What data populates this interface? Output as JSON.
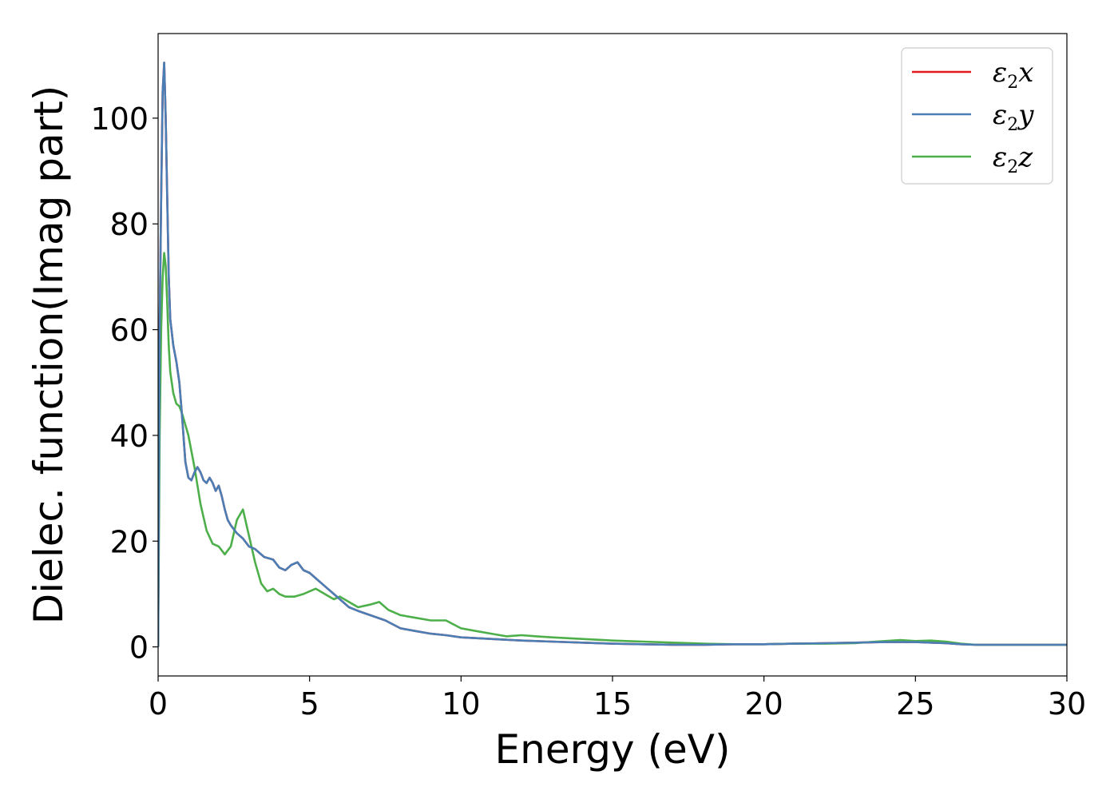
{
  "chart_data": {
    "type": "line",
    "xlabel": "Energy (eV)",
    "ylabel": "Dielec. function(Imag part)",
    "xlim": [
      0,
      30
    ],
    "ylim": [
      -5.5,
      116
    ],
    "xticks": [
      0,
      5,
      10,
      15,
      20,
      25,
      30
    ],
    "yticks": [
      0,
      20,
      40,
      60,
      80,
      100
    ],
    "grid": false,
    "legend_position": "top-right",
    "series": [
      {
        "name": "ε2x",
        "label_main": "ε",
        "label_sub": "2",
        "label_tail": "x",
        "color": "#e41a1c",
        "x": [
          0,
          0.05,
          0.1,
          0.15,
          0.2,
          0.25,
          0.3,
          0.35,
          0.4,
          0.5,
          0.6,
          0.7,
          0.8,
          0.9,
          1.0,
          1.1,
          1.2,
          1.3,
          1.4,
          1.5,
          1.6,
          1.7,
          1.8,
          1.9,
          2.0,
          2.1,
          2.2,
          2.3,
          2.4,
          2.6,
          2.8,
          3.0,
          3.2,
          3.5,
          3.8,
          4.0,
          4.2,
          4.4,
          4.6,
          4.8,
          5.0,
          5.2,
          5.4,
          5.6,
          5.8,
          6.0,
          6.3,
          6.6,
          7.0,
          7.5,
          8.0,
          8.5,
          9.0,
          9.5,
          10.0,
          11.0,
          12.0,
          13.0,
          14.0,
          15.0,
          16.0,
          17.0,
          18.0,
          19.0,
          20.0,
          21.0,
          22.0,
          23.0,
          24.0,
          25.0,
          25.5,
          26.0,
          26.5,
          27.0,
          28.0,
          29.0,
          30.0
        ],
        "values": [
          0,
          60,
          85,
          105,
          110.5,
          100,
          85,
          70,
          62,
          57,
          54,
          50,
          43,
          35,
          32,
          31.5,
          33,
          34,
          33,
          31.5,
          31,
          32,
          31,
          29.5,
          30.5,
          28.5,
          26,
          24,
          23,
          21.5,
          20.5,
          19,
          18.5,
          17,
          16.5,
          15,
          14.5,
          15.5,
          16,
          14.5,
          14,
          13,
          12,
          11,
          10,
          9,
          7.5,
          6.8,
          6,
          5,
          3.5,
          3,
          2.5,
          2.2,
          1.8,
          1.5,
          1.2,
          1.0,
          0.8,
          0.6,
          0.5,
          0.4,
          0.4,
          0.5,
          0.5,
          0.6,
          0.7,
          0.8,
          0.9,
          0.9,
          0.8,
          0.7,
          0.5,
          0.4,
          0.4,
          0.4,
          0.4
        ]
      },
      {
        "name": "ε2y",
        "label_main": "ε",
        "label_sub": "2",
        "label_tail": "y",
        "color": "#4a7eb5",
        "x": [
          0,
          0.05,
          0.1,
          0.15,
          0.2,
          0.25,
          0.3,
          0.35,
          0.4,
          0.5,
          0.6,
          0.7,
          0.8,
          0.9,
          1.0,
          1.1,
          1.2,
          1.3,
          1.4,
          1.5,
          1.6,
          1.7,
          1.8,
          1.9,
          2.0,
          2.1,
          2.2,
          2.3,
          2.4,
          2.6,
          2.8,
          3.0,
          3.2,
          3.5,
          3.8,
          4.0,
          4.2,
          4.4,
          4.6,
          4.8,
          5.0,
          5.2,
          5.4,
          5.6,
          5.8,
          6.0,
          6.3,
          6.6,
          7.0,
          7.5,
          8.0,
          8.5,
          9.0,
          9.5,
          10.0,
          11.0,
          12.0,
          13.0,
          14.0,
          15.0,
          16.0,
          17.0,
          18.0,
          19.0,
          20.0,
          21.0,
          22.0,
          23.0,
          24.0,
          25.0,
          25.5,
          26.0,
          26.5,
          27.0,
          28.0,
          29.0,
          30.0
        ],
        "values": [
          0,
          60,
          85,
          105,
          110.5,
          100,
          85,
          70,
          62,
          57,
          54,
          50,
          43,
          35,
          32,
          31.5,
          33,
          34,
          33,
          31.5,
          31,
          32,
          31,
          29.5,
          30.5,
          28.5,
          26,
          24,
          23,
          21.5,
          20.5,
          19,
          18.5,
          17,
          16.5,
          15,
          14.5,
          15.5,
          16,
          14.5,
          14,
          13,
          12,
          11,
          10,
          9,
          7.5,
          6.8,
          6,
          5,
          3.5,
          3,
          2.5,
          2.2,
          1.8,
          1.5,
          1.2,
          1.0,
          0.8,
          0.6,
          0.5,
          0.4,
          0.4,
          0.5,
          0.5,
          0.6,
          0.7,
          0.8,
          0.9,
          0.9,
          0.8,
          0.7,
          0.5,
          0.4,
          0.4,
          0.4,
          0.4
        ]
      },
      {
        "name": "ε2z",
        "label_main": "ε",
        "label_sub": "2",
        "label_tail": "z",
        "color": "#4daf4a",
        "x": [
          0,
          0.05,
          0.1,
          0.15,
          0.2,
          0.25,
          0.3,
          0.35,
          0.4,
          0.5,
          0.6,
          0.7,
          0.8,
          0.9,
          1.0,
          1.2,
          1.4,
          1.6,
          1.8,
          2.0,
          2.2,
          2.4,
          2.6,
          2.8,
          3.0,
          3.2,
          3.4,
          3.6,
          3.8,
          4.0,
          4.2,
          4.5,
          4.8,
          5.0,
          5.2,
          5.5,
          5.8,
          6.0,
          6.3,
          6.6,
          7.0,
          7.3,
          7.6,
          8.0,
          8.5,
          9.0,
          9.5,
          10.0,
          10.5,
          11.0,
          11.5,
          12.0,
          12.5,
          13.0,
          14.0,
          15.0,
          16.0,
          17.0,
          18.0,
          19.0,
          20.0,
          21.0,
          22.0,
          23.0,
          23.5,
          24.0,
          24.5,
          25.0,
          25.5,
          26.0,
          26.5,
          27.0,
          28.0,
          29.0,
          30.0
        ],
        "values": [
          0,
          40,
          60,
          70,
          74.5,
          72,
          65,
          57,
          52,
          48,
          46,
          45.5,
          44,
          42,
          40,
          34,
          27,
          22,
          19.5,
          19,
          17.5,
          19,
          24,
          26,
          21,
          16,
          12,
          10.5,
          11,
          10,
          9.5,
          9.5,
          10,
          10.5,
          11,
          10,
          9,
          9.5,
          8.5,
          7.5,
          8,
          8.5,
          7,
          6,
          5.5,
          5,
          5,
          3.5,
          3,
          2.5,
          2,
          2.2,
          2.0,
          1.8,
          1.5,
          1.2,
          1.0,
          0.8,
          0.6,
          0.5,
          0.5,
          0.6,
          0.6,
          0.7,
          0.9,
          1.1,
          1.3,
          1.1,
          1.2,
          1.0,
          0.6,
          0.4,
          0.4,
          0.4,
          0.4
        ]
      }
    ]
  }
}
